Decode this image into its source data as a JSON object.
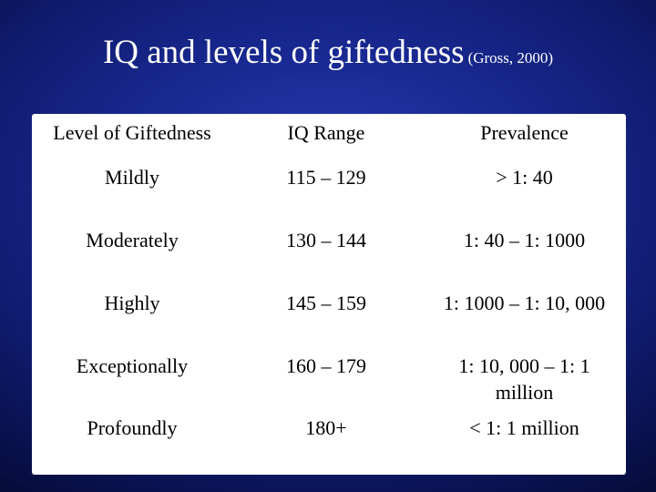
{
  "slide": {
    "title": "IQ and levels of giftedness",
    "citation": "(Gross, 2000)"
  },
  "table": {
    "headers": {
      "level": "Level of Giftedness",
      "iq_range": "IQ Range",
      "prevalence": "Prevalence"
    },
    "rows": [
      {
        "level": "Mildly",
        "iq_range": "115 – 129",
        "prevalence": "> 1: 40",
        "prevalence_line2": ""
      },
      {
        "level": "Moderately",
        "iq_range": "130 – 144",
        "prevalence": "1: 40 – 1: 1000",
        "prevalence_line2": ""
      },
      {
        "level": "Highly",
        "iq_range": "145 – 159",
        "prevalence": "1: 1000 – 1: 10, 000",
        "prevalence_line2": ""
      },
      {
        "level": "Exceptionally",
        "iq_range": "160 – 179",
        "prevalence": "1: 10, 000 – 1: 1",
        "prevalence_line2": "million"
      },
      {
        "level": "Profoundly",
        "iq_range": "180+",
        "prevalence": "< 1: 1 million",
        "prevalence_line2": ""
      }
    ]
  },
  "colors": {
    "background": "#1a2a94",
    "title_text": "#ffffff",
    "table_background": "#ffffff",
    "table_text": "#000000"
  }
}
